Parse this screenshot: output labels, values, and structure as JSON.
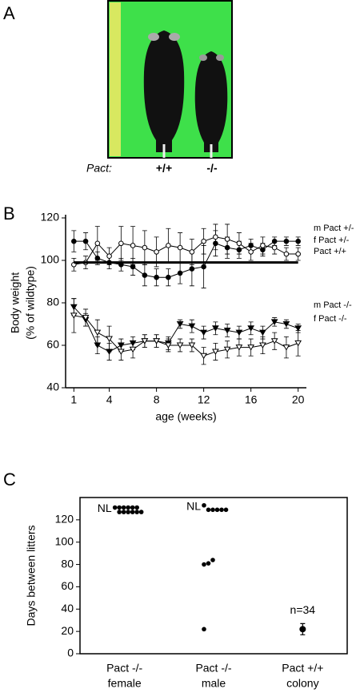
{
  "panel_labels": [
    "A",
    "B",
    "C"
  ],
  "photo": {
    "genotype_label": "Pact:",
    "genotypes": [
      "+/+",
      "-/-"
    ]
  },
  "chart_data": [
    {
      "type": "line",
      "x_label": "age (weeks)",
      "y_label": [
        "Body weight",
        "(% of wildtype)"
      ],
      "x": [
        1,
        2,
        3,
        4,
        5,
        6,
        7,
        8,
        9,
        10,
        11,
        12,
        13,
        14,
        15,
        16,
        17,
        18,
        19,
        20
      ],
      "xlim": [
        0.3,
        20.7
      ],
      "xticks": [
        1,
        4,
        8,
        12,
        16,
        20
      ],
      "ylim": [
        40,
        120
      ],
      "yticks": [
        40,
        60,
        80,
        100,
        120
      ],
      "series": [
        {
          "name": "m Pact +/-",
          "color": "#000",
          "marker": "filled-circle",
          "values": [
            109,
            109,
            101,
            99,
            98,
            97,
            93,
            92,
            92,
            94,
            96,
            97,
            108,
            106,
            105,
            107,
            105,
            109,
            109,
            109
          ],
          "errors": [
            5,
            4,
            3,
            3,
            3,
            4,
            5,
            4,
            4,
            5,
            8,
            10,
            6,
            5,
            4,
            3,
            3,
            2,
            2,
            2
          ]
        },
        {
          "name": "f  Pact +/-",
          "color": "#000",
          "marker": "open-circle",
          "values": [
            98,
            99,
            108,
            102,
            108,
            107,
            106,
            104,
            107,
            106,
            104,
            109,
            111,
            110,
            108,
            104,
            107,
            106,
            103,
            103
          ],
          "errors": [
            3,
            3,
            8,
            4,
            8,
            9,
            8,
            7,
            8,
            7,
            6,
            6,
            6,
            7,
            5,
            4,
            4,
            3,
            3,
            3
          ]
        },
        {
          "name": "Pact +/+",
          "color": "#000",
          "marker": "none",
          "values": [
            99,
            99,
            99,
            99,
            99,
            99,
            99,
            99,
            99,
            99,
            99,
            99,
            99,
            99,
            99,
            99,
            99,
            99,
            99,
            99
          ]
        },
        {
          "name": "m Pact -/-",
          "color": "#000",
          "marker": "filled-triangle",
          "values": [
            78,
            72,
            60,
            57,
            60,
            61,
            62,
            62,
            61,
            70,
            69,
            66,
            68,
            67,
            66,
            68,
            66,
            71,
            70,
            68
          ],
          "errors": [
            4,
            3,
            4,
            4,
            3,
            3,
            3,
            3,
            3,
            2,
            3,
            3,
            3,
            3,
            3,
            3,
            3,
            2,
            2,
            2
          ]
        },
        {
          "name": "f   Pact -/-",
          "color": "#000",
          "marker": "open-triangle",
          "values": [
            74,
            73,
            66,
            63,
            57,
            58,
            62,
            62,
            60,
            60,
            60,
            55,
            57,
            58,
            59,
            59,
            60,
            62,
            59,
            61
          ],
          "errors": [
            8,
            4,
            6,
            6,
            4,
            4,
            3,
            3,
            3,
            3,
            3,
            4,
            4,
            4,
            4,
            4,
            4,
            4,
            5,
            6
          ]
        }
      ]
    },
    {
      "type": "dot",
      "y_label": "Days between litters",
      "categories": [
        [
          "Pact -/-",
          "female"
        ],
        [
          "Pact -/-",
          "male"
        ],
        [
          "Pact +/+",
          "colony"
        ]
      ],
      "ylim": [
        0,
        140
      ],
      "yticks": [
        0,
        20,
        40,
        60,
        80,
        100,
        120
      ],
      "points": [
        [
          131,
          131,
          131,
          131,
          131,
          131,
          127,
          127,
          127,
          127,
          127,
          127
        ],
        [
          133,
          129,
          129,
          129,
          129,
          129,
          80,
          81,
          84,
          22
        ],
        [
          22
        ]
      ],
      "errors": [
        null,
        null,
        5
      ],
      "group_labels": [
        "NL",
        "NL",
        "n=34"
      ]
    }
  ]
}
